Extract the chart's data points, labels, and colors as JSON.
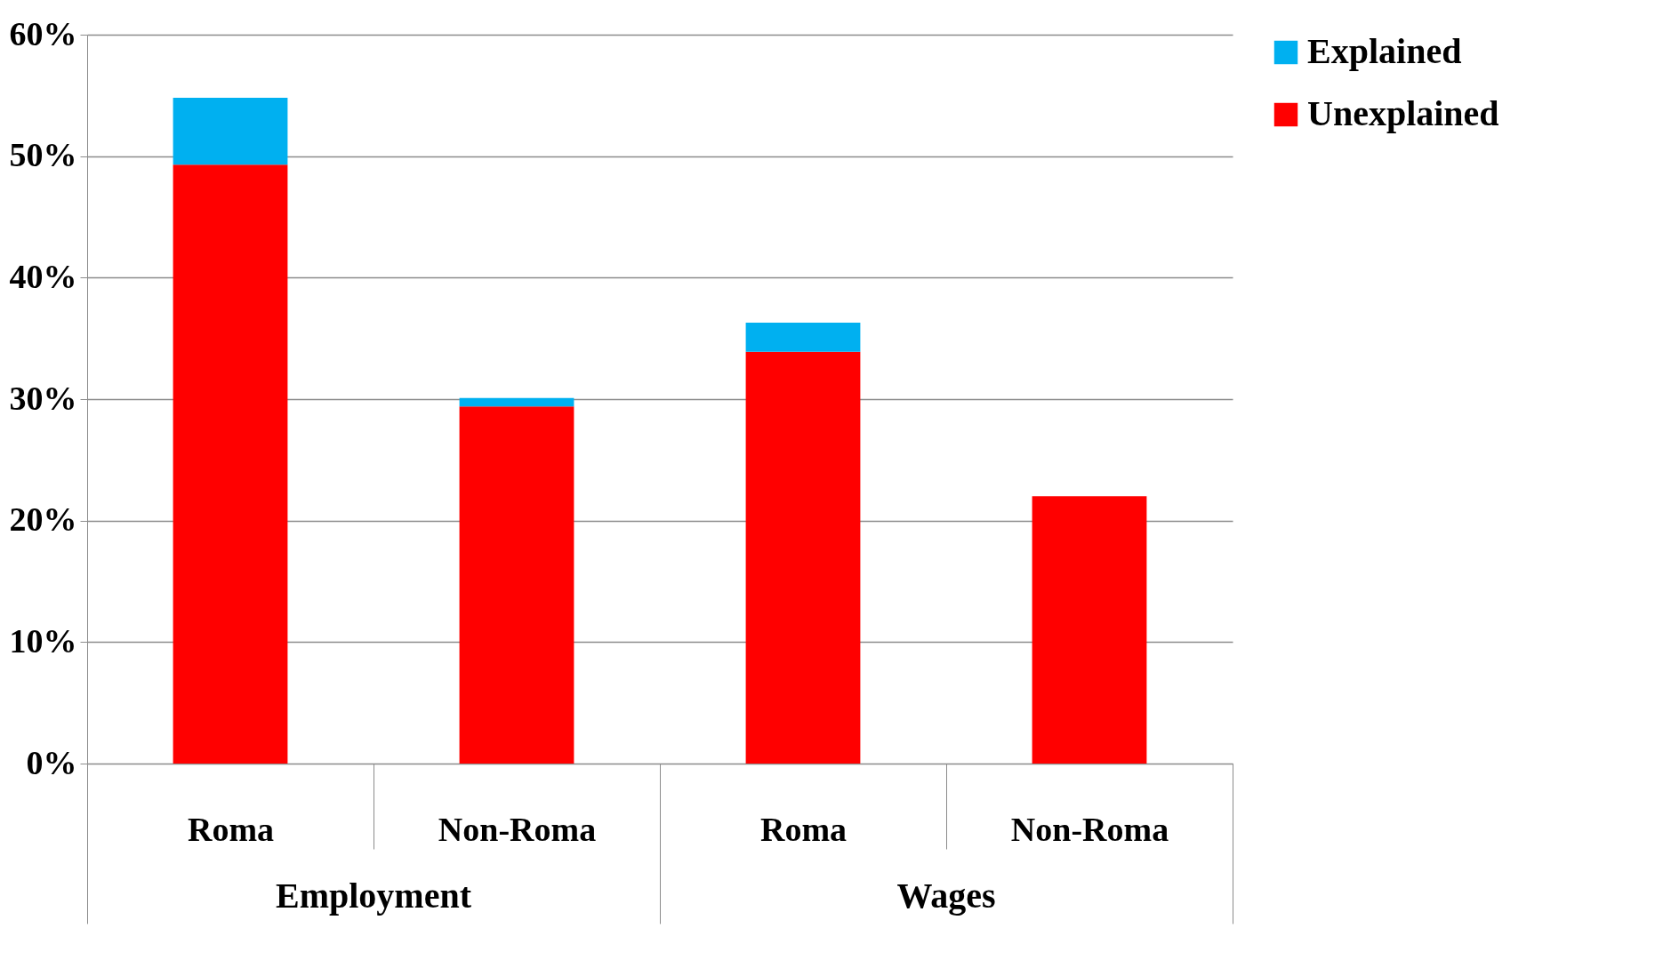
{
  "chart_data": {
    "type": "bar",
    "stacked": true,
    "categories": [
      "Roma",
      "Non-Roma",
      "Roma",
      "Non-Roma"
    ],
    "series": [
      {
        "name": "Unexplained",
        "color": "#ff0000",
        "values": [
          49.3,
          29.4,
          33.9,
          22.0
        ]
      },
      {
        "name": "Explained",
        "color": "#00b0f0",
        "values": [
          5.5,
          0.7,
          2.4,
          0
        ]
      }
    ],
    "ylim": [
      0,
      60
    ],
    "yticks": [
      {
        "value": 0,
        "label": "0%"
      },
      {
        "value": 10,
        "label": "10%"
      },
      {
        "value": 20,
        "label": "20%"
      },
      {
        "value": 30,
        "label": "30%"
      },
      {
        "value": 40,
        "label": "40%"
      },
      {
        "value": 50,
        "label": "50%"
      },
      {
        "value": 60,
        "label": "60%"
      }
    ],
    "annotations": [
      "Employment",
      "Wages"
    ],
    "grid": "y",
    "legend": "right"
  }
}
